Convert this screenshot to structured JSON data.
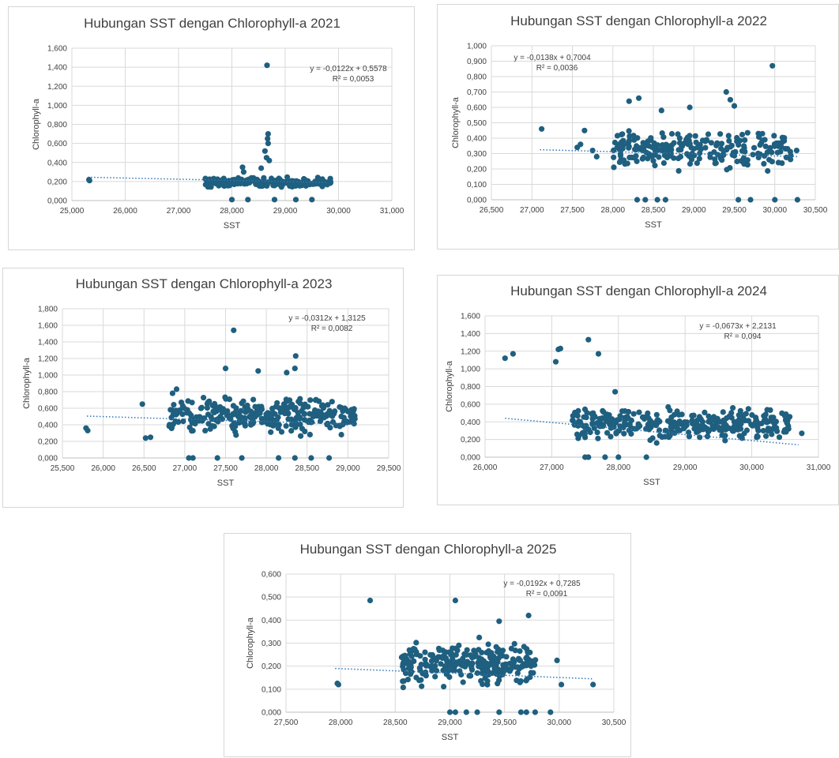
{
  "chart_data": [
    {
      "type": "scatter",
      "title": "Hubungan SST dengan Chlorophyll-a 2021",
      "xlabel": "SST",
      "ylabel": "Chlorophyll-a",
      "xlim": [
        25000,
        31000
      ],
      "ylim": [
        0,
        1.6
      ],
      "x_ticks": [
        "25,000",
        "26,000",
        "27,000",
        "28,000",
        "29,000",
        "30,000",
        "31,000"
      ],
      "y_ticks": [
        "0,000",
        "0,200",
        "0,400",
        "0,600",
        "0,800",
        "1,000",
        "1,200",
        "1,400",
        "1,600"
      ],
      "equation": "y = -0,0122x + 0,5578",
      "r_squared_label": "R² = 0,0053",
      "trendline": {
        "x": [
          25300,
          29800
        ],
        "y": [
          0.245,
          0.19
        ]
      },
      "gridlines": true,
      "notable_points": [
        {
          "x": 25320,
          "y": 0.22
        },
        {
          "x": 25330,
          "y": 0.21
        },
        {
          "x": 28660,
          "y": 1.42
        },
        {
          "x": 28680,
          "y": 0.7
        },
        {
          "x": 28670,
          "y": 0.65
        },
        {
          "x": 28680,
          "y": 0.6
        },
        {
          "x": 28620,
          "y": 0.52
        },
        {
          "x": 28650,
          "y": 0.45
        },
        {
          "x": 28700,
          "y": 0.42
        },
        {
          "x": 28200,
          "y": 0.35
        },
        {
          "x": 28220,
          "y": 0.3
        },
        {
          "x": 28550,
          "y": 0.34
        },
        {
          "x": 28000,
          "y": 0.01
        },
        {
          "x": 28300,
          "y": 0.01
        },
        {
          "x": 28800,
          "y": 0.01
        },
        {
          "x": 29200,
          "y": 0.01
        },
        {
          "x": 29500,
          "y": 0.01
        }
      ],
      "cluster": {
        "x_range": [
          27500,
          29850
        ],
        "y_range": [
          0.12,
          0.26
        ],
        "count": 220
      }
    },
    {
      "type": "scatter",
      "title": "Hubungan SST dengan Chlorophyll-a 2022",
      "xlabel": "SST",
      "ylabel": "Chlorophyll-a",
      "xlim": [
        26500,
        30500
      ],
      "ylim": [
        0,
        1
      ],
      "x_ticks": [
        "26,500",
        "27,000",
        "27,500",
        "28,000",
        "28,500",
        "29,000",
        "29,500",
        "30,000",
        "30,500"
      ],
      "y_ticks": [
        "0,000",
        "0,100",
        "0,200",
        "0,300",
        "0,400",
        "0,500",
        "0,600",
        "0,700",
        "0,800",
        "0,900",
        "1,000"
      ],
      "equation": "y = -0,0138x + 0,7004",
      "r_squared_label": "R² = 0,0036",
      "trendline": {
        "x": [
          27100,
          30300
        ],
        "y": [
          0.325,
          0.28
        ]
      },
      "gridlines": true,
      "notable_points": [
        {
          "x": 27120,
          "y": 0.46
        },
        {
          "x": 27650,
          "y": 0.45
        },
        {
          "x": 27560,
          "y": 0.34
        },
        {
          "x": 27600,
          "y": 0.36
        },
        {
          "x": 27750,
          "y": 0.32
        },
        {
          "x": 27800,
          "y": 0.28
        },
        {
          "x": 28200,
          "y": 0.64
        },
        {
          "x": 28320,
          "y": 0.66
        },
        {
          "x": 28600,
          "y": 0.58
        },
        {
          "x": 28950,
          "y": 0.6
        },
        {
          "x": 29400,
          "y": 0.7
        },
        {
          "x": 29450,
          "y": 0.65
        },
        {
          "x": 29500,
          "y": 0.61
        },
        {
          "x": 29970,
          "y": 0.87
        },
        {
          "x": 28300,
          "y": 0.0
        },
        {
          "x": 28400,
          "y": 0.0
        },
        {
          "x": 28550,
          "y": 0.0
        },
        {
          "x": 28650,
          "y": 0.0
        },
        {
          "x": 29550,
          "y": 0.0
        },
        {
          "x": 29700,
          "y": 0.0
        },
        {
          "x": 30000,
          "y": 0.0
        },
        {
          "x": 30280,
          "y": 0.0
        },
        {
          "x": 30270,
          "y": 0.32
        }
      ],
      "cluster": {
        "x_range": [
          28000,
          30200
        ],
        "y_range": [
          0.14,
          0.5
        ],
        "count": 230
      }
    },
    {
      "type": "scatter",
      "title": "Hubungan SST dengan Chlorophyll-a 2023",
      "xlabel": "SST",
      "ylabel": "Chlorophyll-a",
      "xlim": [
        25500,
        29500
      ],
      "ylim": [
        0,
        1.8
      ],
      "x_ticks": [
        "25,500",
        "26,000",
        "26,500",
        "27,000",
        "27,500",
        "28,000",
        "28,500",
        "29,000",
        "29,500"
      ],
      "y_ticks": [
        "0,000",
        "0,200",
        "0,400",
        "0,600",
        "0,800",
        "1,000",
        "1,200",
        "1,400",
        "1,600",
        "1,800"
      ],
      "equation": "y = -0,0312x + 1,3125",
      "r_squared_label": "R² = 0,0082",
      "trendline": {
        "x": [
          25800,
          29100
        ],
        "y": [
          0.505,
          0.405
        ]
      },
      "gridlines": true,
      "notable_points": [
        {
          "x": 25790,
          "y": 0.36
        },
        {
          "x": 25810,
          "y": 0.33
        },
        {
          "x": 26480,
          "y": 0.65
        },
        {
          "x": 26520,
          "y": 0.24
        },
        {
          "x": 26580,
          "y": 0.25
        },
        {
          "x": 26900,
          "y": 0.83
        },
        {
          "x": 26850,
          "y": 0.78
        },
        {
          "x": 27600,
          "y": 1.54
        },
        {
          "x": 27500,
          "y": 1.08
        },
        {
          "x": 27900,
          "y": 1.05
        },
        {
          "x": 28360,
          "y": 1.23
        },
        {
          "x": 28350,
          "y": 1.08
        },
        {
          "x": 28250,
          "y": 1.03
        },
        {
          "x": 27050,
          "y": 0.0
        },
        {
          "x": 27100,
          "y": 0.0
        },
        {
          "x": 27400,
          "y": 0.0
        },
        {
          "x": 27700,
          "y": 0.0
        },
        {
          "x": 28150,
          "y": 0.0
        },
        {
          "x": 28350,
          "y": 0.0
        },
        {
          "x": 28550,
          "y": 0.0
        },
        {
          "x": 28770,
          "y": 0.0
        }
      ],
      "cluster": {
        "x_range": [
          26800,
          29100
        ],
        "y_range": [
          0.22,
          0.8
        ],
        "count": 300
      }
    },
    {
      "type": "scatter",
      "title": "Hubungan SST dengan Chlorophyll-a 2024",
      "xlabel": "SST",
      "ylabel": "Chlorophyll-a",
      "xlim": [
        26000,
        31000
      ],
      "ylim": [
        0,
        1.6
      ],
      "x_ticks": [
        "26,000",
        "27,000",
        "28,000",
        "29,000",
        "30,000",
        "31,000"
      ],
      "y_ticks": [
        "0,000",
        "0,200",
        "0,400",
        "0,600",
        "0,800",
        "1,000",
        "1,200",
        "1,400",
        "1,600"
      ],
      "equation": "y = -0,0673x + 2,2131",
      "r_squared_label": "R² = 0,094",
      "trendline": {
        "x": [
          26300,
          30700
        ],
        "y": [
          0.44,
          0.14
        ]
      },
      "gridlines": true,
      "notable_points": [
        {
          "x": 26300,
          "y": 1.12
        },
        {
          "x": 26420,
          "y": 1.17
        },
        {
          "x": 27100,
          "y": 1.22
        },
        {
          "x": 27130,
          "y": 1.23
        },
        {
          "x": 27060,
          "y": 1.08
        },
        {
          "x": 27550,
          "y": 1.33
        },
        {
          "x": 27700,
          "y": 1.17
        },
        {
          "x": 27950,
          "y": 0.74
        },
        {
          "x": 27500,
          "y": 0.0
        },
        {
          "x": 27550,
          "y": 0.0
        },
        {
          "x": 27800,
          "y": 0.0
        },
        {
          "x": 28000,
          "y": 0.0
        },
        {
          "x": 28420,
          "y": 0.0
        },
        {
          "x": 30750,
          "y": 0.27
        }
      ],
      "cluster": {
        "x_range": [
          27300,
          30600
        ],
        "y_range": [
          0.14,
          0.6
        ],
        "count": 330
      }
    },
    {
      "type": "scatter",
      "title": "Hubungan SST dengan Chlorophyll-a 2025",
      "xlabel": "SST",
      "ylabel": "Chlorophyll-a",
      "xlim": [
        27500,
        30500
      ],
      "ylim": [
        0,
        0.6
      ],
      "x_ticks": [
        "27,500",
        "28,000",
        "28,500",
        "29,000",
        "29,500",
        "30,000",
        "30,500"
      ],
      "y_ticks": [
        "0,000",
        "0,100",
        "0,200",
        "0,300",
        "0,400",
        "0,500",
        "0,600"
      ],
      "equation": "y = -0,0192x + 0,7285",
      "r_squared_label": "R² = 0,0091",
      "trendline": {
        "x": [
          27950,
          30300
        ],
        "y": [
          0.19,
          0.145
        ]
      },
      "gridlines": true,
      "notable_points": [
        {
          "x": 27970,
          "y": 0.125
        },
        {
          "x": 27980,
          "y": 0.12
        },
        {
          "x": 28270,
          "y": 0.485
        },
        {
          "x": 29050,
          "y": 0.485
        },
        {
          "x": 29720,
          "y": 0.42
        },
        {
          "x": 29450,
          "y": 0.395
        },
        {
          "x": 29000,
          "y": 0.0
        },
        {
          "x": 29050,
          "y": 0.0
        },
        {
          "x": 29150,
          "y": 0.0
        },
        {
          "x": 29250,
          "y": 0.0
        },
        {
          "x": 29450,
          "y": 0.0
        },
        {
          "x": 29650,
          "y": 0.0
        },
        {
          "x": 29700,
          "y": 0.0
        },
        {
          "x": 29780,
          "y": 0.0
        },
        {
          "x": 29920,
          "y": 0.0
        },
        {
          "x": 30020,
          "y": 0.12
        },
        {
          "x": 30310,
          "y": 0.12
        },
        {
          "x": 29980,
          "y": 0.225
        }
      ],
      "cluster": {
        "x_range": [
          28550,
          29800
        ],
        "y_range": [
          0.09,
          0.33
        ],
        "count": 260
      }
    }
  ]
}
